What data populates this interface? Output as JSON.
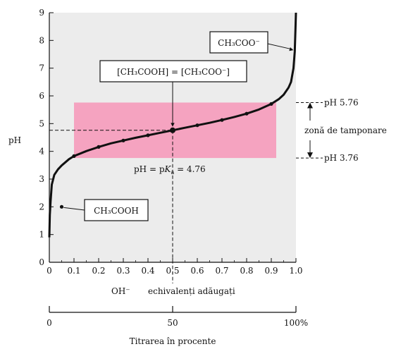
{
  "chart_data": {
    "type": "line",
    "title": "",
    "ylabel": "pH",
    "xlabel_prefix": "OH⁻",
    "xlabel": "echivalenți adăugați",
    "xlim": [
      0,
      1.0
    ],
    "ylim": [
      0,
      9
    ],
    "x_ticks": [
      "0",
      "0.1",
      "0.2",
      "0.3",
      "0.4",
      "0.5",
      "0.6",
      "0.7",
      "0.8",
      "0.9",
      "1.0"
    ],
    "y_ticks": [
      "0",
      "1",
      "2",
      "3",
      "4",
      "5",
      "6",
      "7",
      "8",
      "9"
    ],
    "grid": false,
    "background_color": "#ececec",
    "curve_color": "#111111",
    "buffer_zone": {
      "x_range": [
        0.1,
        0.92
      ],
      "y_range": [
        3.76,
        5.76
      ],
      "color": "#f5a3c0"
    },
    "series": [
      {
        "name": "",
        "points": [
          {
            "x": 0.0,
            "y": 0.9
          },
          {
            "x": 0.002,
            "y": 1.7
          },
          {
            "x": 0.005,
            "y": 2.2
          },
          {
            "x": 0.01,
            "y": 2.8
          },
          {
            "x": 0.02,
            "y": 3.15
          },
          {
            "x": 0.035,
            "y": 3.35
          },
          {
            "x": 0.05,
            "y": 3.49
          },
          {
            "x": 0.08,
            "y": 3.72
          },
          {
            "x": 0.1,
            "y": 3.83
          },
          {
            "x": 0.15,
            "y": 4.01
          },
          {
            "x": 0.2,
            "y": 4.16
          },
          {
            "x": 0.25,
            "y": 4.29
          },
          {
            "x": 0.3,
            "y": 4.39
          },
          {
            "x": 0.35,
            "y": 4.49
          },
          {
            "x": 0.4,
            "y": 4.58
          },
          {
            "x": 0.45,
            "y": 4.67
          },
          {
            "x": 0.5,
            "y": 4.76
          },
          {
            "x": 0.55,
            "y": 4.85
          },
          {
            "x": 0.6,
            "y": 4.94
          },
          {
            "x": 0.65,
            "y": 5.03
          },
          {
            "x": 0.7,
            "y": 5.13
          },
          {
            "x": 0.75,
            "y": 5.24
          },
          {
            "x": 0.8,
            "y": 5.36
          },
          {
            "x": 0.85,
            "y": 5.51
          },
          {
            "x": 0.9,
            "y": 5.71
          },
          {
            "x": 0.93,
            "y": 5.88
          },
          {
            "x": 0.95,
            "y": 6.04
          },
          {
            "x": 0.97,
            "y": 6.3
          },
          {
            "x": 0.98,
            "y": 6.5
          },
          {
            "x": 0.99,
            "y": 7.0
          },
          {
            "x": 0.995,
            "y": 7.6
          },
          {
            "x": 0.998,
            "y": 8.4
          },
          {
            "x": 1.0,
            "y": 9.0
          }
        ],
        "markers": [
          {
            "x": 0.1,
            "y": 3.83
          },
          {
            "x": 0.2,
            "y": 4.16
          },
          {
            "x": 0.3,
            "y": 4.39
          },
          {
            "x": 0.4,
            "y": 4.58
          },
          {
            "x": 0.5,
            "y": 4.76
          },
          {
            "x": 0.6,
            "y": 4.94
          },
          {
            "x": 0.7,
            "y": 5.13
          },
          {
            "x": 0.8,
            "y": 5.36
          },
          {
            "x": 0.9,
            "y": 5.71
          }
        ]
      }
    ],
    "reference_line": {
      "x": 0.5,
      "y": 4.76
    },
    "annotations": {
      "acetic_acid": {
        "text": "CH₃COOH",
        "point": {
          "x": 0.05,
          "y": 2.0
        }
      },
      "acetate": {
        "text": "CH₃COO⁻",
        "point": {
          "x": 0.995,
          "y": 7.6
        }
      },
      "equal": {
        "text": "[CH₃COOH] = [CH₃COO⁻]",
        "point": {
          "x": 0.5,
          "y": 4.76
        }
      },
      "pka": {
        "text_prefix": "pH = p",
        "k": "K",
        "sub": "a",
        "text_suffix": " = 4.76"
      }
    },
    "buffer_labels": {
      "upper": "pH 5.76",
      "lower": "pH 3.76",
      "zone": "zonă de tamponare"
    },
    "percent_axis": {
      "title": "Titrarea în procente",
      "ticks": [
        "0",
        "50",
        "100%"
      ]
    }
  }
}
